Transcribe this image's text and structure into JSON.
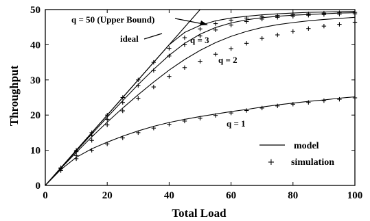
{
  "chart_data": {
    "type": "line",
    "xlabel": "Total Load",
    "ylabel": "Throughput",
    "xlim": [
      0,
      100
    ],
    "ylim": [
      0,
      50
    ],
    "xticks": [
      0,
      20,
      40,
      60,
      80,
      100
    ],
    "yticks": [
      0,
      10,
      20,
      30,
      40,
      50
    ],
    "grid": false,
    "legend_position": "bottom-right",
    "legend": {
      "line_label": "model",
      "marker_label": "simulation"
    },
    "annotations": {
      "upper_bound": "q = 50 (Upper Bound)",
      "ideal": "ideal",
      "q3": "q = 3",
      "q2": "q = 2",
      "q1": "q = 1"
    },
    "ideal": {
      "x": [
        0,
        50
      ],
      "y": [
        0,
        50
      ]
    },
    "model_curves": [
      {
        "name": "q = 50",
        "x": [
          0,
          5,
          10,
          15,
          20,
          25,
          30,
          35,
          40,
          45,
          50,
          55,
          60,
          65,
          70,
          75,
          80,
          85,
          90,
          95,
          100
        ],
        "y": [
          0,
          5,
          10,
          15,
          20,
          25,
          30,
          35,
          40,
          43.5,
          45.5,
          46.8,
          47.6,
          48.1,
          48.5,
          48.8,
          49.0,
          49.2,
          49.3,
          49.4,
          49.5
        ]
      },
      {
        "name": "q = 3",
        "x": [
          0,
          5,
          10,
          15,
          20,
          25,
          30,
          35,
          40,
          45,
          50,
          55,
          60,
          65,
          70,
          75,
          80,
          85,
          90,
          95,
          100
        ],
        "y": [
          0,
          4.9,
          9.8,
          14.6,
          19.4,
          24.1,
          28.7,
          33.0,
          37.0,
          40.4,
          43.0,
          44.9,
          46.2,
          47.1,
          47.7,
          48.1,
          48.4,
          48.6,
          48.8,
          49.0,
          49.1
        ]
      },
      {
        "name": "q = 2",
        "x": [
          0,
          5,
          10,
          15,
          20,
          25,
          30,
          35,
          40,
          45,
          50,
          55,
          60,
          65,
          70,
          75,
          80,
          85,
          90,
          95,
          100
        ],
        "y": [
          0,
          4.8,
          9.4,
          13.8,
          18.0,
          22.0,
          25.8,
          29.4,
          32.8,
          35.8,
          38.4,
          40.6,
          42.4,
          43.8,
          44.9,
          45.7,
          46.3,
          46.8,
          47.2,
          47.5,
          47.8
        ]
      },
      {
        "name": "q = 1",
        "x": [
          0,
          5,
          10,
          15,
          20,
          25,
          30,
          35,
          40,
          45,
          50,
          55,
          60,
          65,
          70,
          75,
          80,
          85,
          90,
          95,
          100
        ],
        "y": [
          0,
          4.5,
          8.0,
          10.4,
          12.3,
          14.0,
          15.5,
          16.8,
          17.9,
          18.8,
          19.6,
          20.3,
          21.0,
          21.6,
          22.3,
          22.9,
          23.4,
          23.9,
          24.3,
          24.8,
          25.2
        ]
      }
    ],
    "simulation_points": [
      {
        "name": "q = 50",
        "x": [
          5,
          10,
          15,
          20,
          25,
          30,
          35,
          40,
          45,
          50,
          55,
          60,
          65,
          70,
          75,
          80,
          85,
          90,
          95,
          100
        ],
        "y": [
          5,
          10,
          15,
          20,
          25,
          30,
          35,
          39,
          42,
          44.5,
          46,
          47,
          47.6,
          48,
          48.3,
          48.6,
          48.8,
          49,
          49.1,
          49.2
        ]
      },
      {
        "name": "q = 3",
        "x": [
          5,
          10,
          15,
          20,
          25,
          30,
          35,
          40,
          45,
          50,
          55,
          60,
          65,
          70,
          75,
          80,
          85,
          90,
          95,
          100
        ],
        "y": [
          4.8,
          9.6,
          14.2,
          18.8,
          23.6,
          28.4,
          32.7,
          36.8,
          40.0,
          42.5,
          44.2,
          45.6,
          46.6,
          47.3,
          47.8,
          48.1,
          48.4,
          48.6,
          48.7,
          48.8
        ]
      },
      {
        "name": "q = 2",
        "x": [
          5,
          10,
          15,
          20,
          25,
          30,
          35,
          40,
          45,
          50,
          55,
          60,
          65,
          70,
          75,
          80,
          85,
          90,
          95,
          100
        ],
        "y": [
          4.3,
          8.5,
          12.8,
          17.2,
          21.2,
          24.8,
          28.0,
          31.0,
          33.5,
          35.3,
          37.3,
          38.9,
          40.4,
          41.8,
          42.8,
          43.8,
          44.6,
          45.3,
          45.8,
          46.4
        ]
      },
      {
        "name": "q = 1",
        "x": [
          5,
          10,
          15,
          20,
          25,
          30,
          35,
          40,
          45,
          50,
          55,
          60,
          65,
          70,
          75,
          80,
          85,
          90,
          95,
          100
        ],
        "y": [
          4.2,
          7.6,
          10.0,
          11.8,
          13.5,
          15.0,
          16.3,
          17.4,
          18.3,
          19.1,
          19.9,
          20.6,
          21.3,
          22.0,
          22.6,
          23.1,
          23.6,
          24.1,
          24.5,
          24.9
        ]
      }
    ]
  }
}
